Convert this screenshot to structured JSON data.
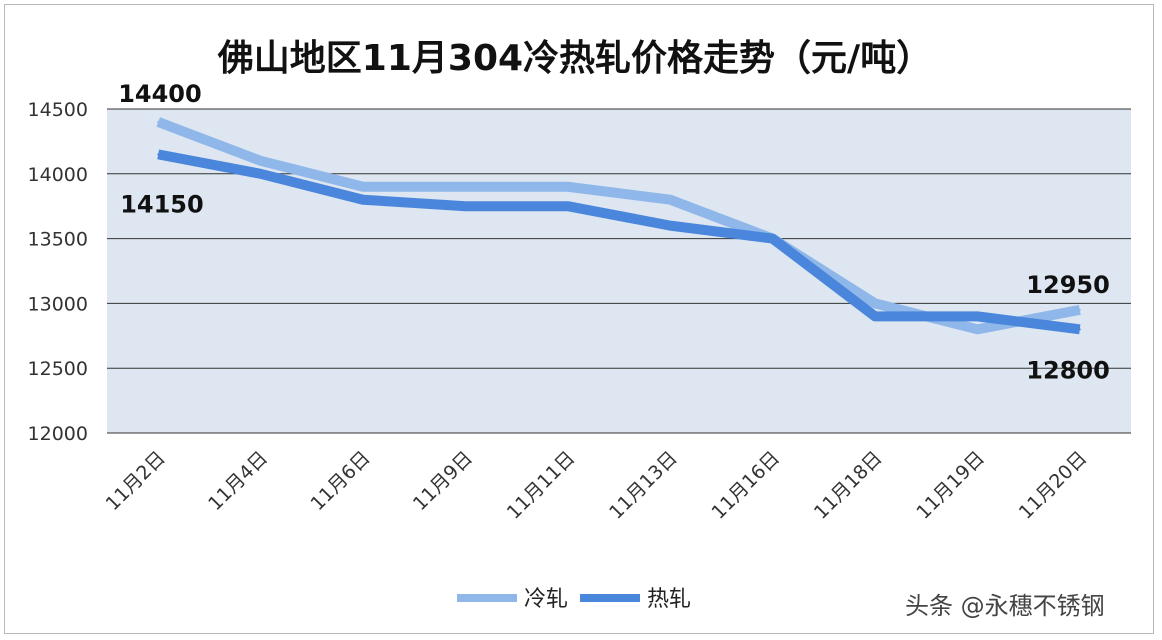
{
  "chart_data": {
    "type": "line",
    "title": "佛山地区11月304冷热轧价格走势（元/吨）",
    "categories": [
      "11月2日",
      "11月4日",
      "11月6日",
      "11月9日",
      "11月11日",
      "11月13日",
      "11月16日",
      "11月18日",
      "11月19日",
      "11月20日"
    ],
    "series": [
      {
        "name": "冷轧",
        "color": "#8fb7ea",
        "values": [
          14400,
          14100,
          13900,
          13900,
          13900,
          13800,
          13500,
          13000,
          12800,
          12950
        ]
      },
      {
        "name": "热轧",
        "color": "#4a86dc",
        "values": [
          14150,
          14000,
          13800,
          13750,
          13750,
          13600,
          13500,
          12900,
          12900,
          12800
        ]
      }
    ],
    "ylim": [
      12000,
      14500
    ],
    "yticks": [
      14500,
      14000,
      13500,
      13000,
      12500,
      12000
    ],
    "data_labels": [
      "14400",
      "14150",
      "12950",
      "12800"
    ],
    "grid": true,
    "legend_position": "bottom",
    "plot_background": "#dde6f1"
  },
  "watermark": "头条 @永穗不锈钢"
}
